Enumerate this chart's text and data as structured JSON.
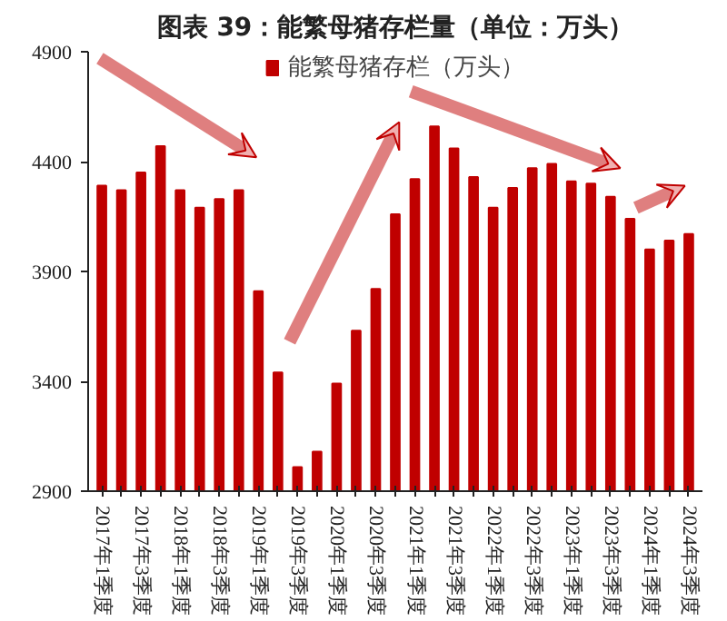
{
  "chart_data": {
    "type": "bar",
    "title": "图表 39：能繁母猪存栏量（单位：万头）",
    "categories": [
      "2017年1季度",
      null,
      "2017年3季度",
      null,
      "2018年1季度",
      null,
      "2018年3季度",
      null,
      "2019年1季度",
      null,
      "2019年3季度",
      null,
      "2020年1季度",
      null,
      "2020年3季度",
      null,
      "2021年1季度",
      null,
      "2021年3季度",
      null,
      "2022年1季度",
      null,
      "2022年3季度",
      null,
      "2023年1季度",
      null,
      "2023年3季度",
      null,
      "2024年1季度",
      null,
      "2024年3季度"
    ],
    "series": [
      {
        "name": "能繁母猪存栏（万头）",
        "color": "#c00000",
        "values": [
          4290,
          4270,
          4350,
          4470,
          4270,
          4190,
          4230,
          4270,
          3810,
          3440,
          3010,
          3080,
          3390,
          3630,
          3820,
          4160,
          4320,
          4560,
          4460,
          4330,
          4190,
          4280,
          4370,
          4390,
          4310,
          4300,
          4240,
          4140,
          4000,
          4040,
          4070
        ]
      }
    ],
    "ylim": [
      2900,
      4900
    ],
    "yticks": [
      2900,
      3400,
      3900,
      4400,
      4900
    ],
    "grid": false,
    "legend": "top"
  }
}
